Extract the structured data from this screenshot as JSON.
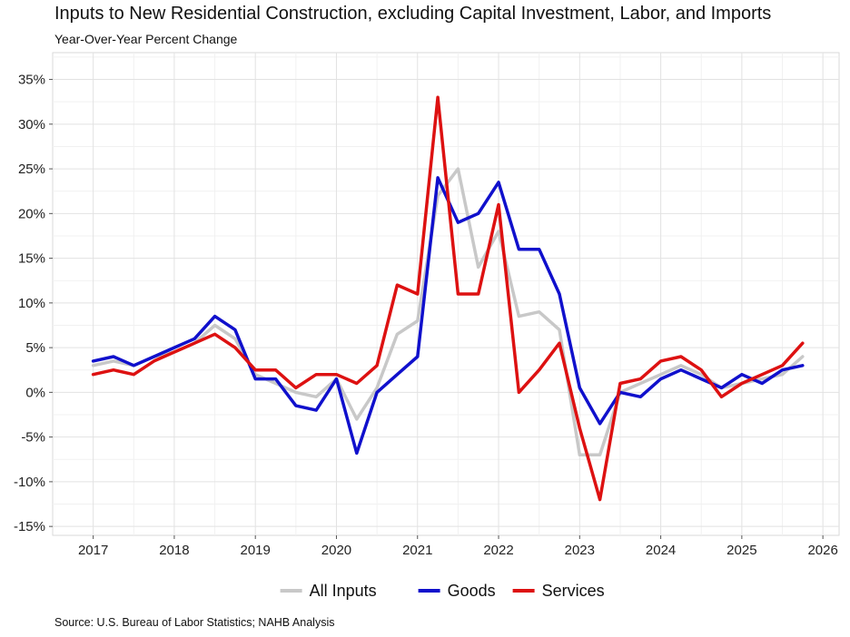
{
  "chart_data": {
    "type": "line",
    "title": "Inputs to New Residential Construction, excluding Capital Investment, Labor, and Imports",
    "subtitle": "Year-Over-Year Percent Change",
    "source": "Source: U.S. Bureau of Labor Statistics; NAHB Analysis",
    "xlabel": "",
    "ylabel": "",
    "x_ticks": [
      "2017",
      "2018",
      "2019",
      "2020",
      "2021",
      "2022",
      "2023",
      "2024",
      "2025",
      "2026"
    ],
    "y_ticks": [
      "35%",
      "30%",
      "25%",
      "20%",
      "15%",
      "10%",
      "5%",
      "0%",
      "-5%",
      "-10%",
      "-15%"
    ],
    "xlim": [
      2016.5,
      2026.2
    ],
    "ylim": [
      -16.0,
      38.0
    ],
    "grid": true,
    "legend_position": "bottom",
    "x": [
      "2017-01",
      "2017-04",
      "2017-07",
      "2017-10",
      "2018-01",
      "2018-04",
      "2018-07",
      "2018-10",
      "2019-01",
      "2019-04",
      "2019-07",
      "2019-10",
      "2020-01",
      "2020-04",
      "2020-07",
      "2020-10",
      "2021-01",
      "2021-04",
      "2021-07",
      "2021-10",
      "2022-01",
      "2022-04",
      "2022-07",
      "2022-10",
      "2023-01",
      "2023-04",
      "2023-07",
      "2023-10",
      "2024-01",
      "2024-04",
      "2024-07",
      "2024-10",
      "2025-01",
      "2025-04",
      "2025-07",
      "2025-10"
    ],
    "series": [
      {
        "name": "All Inputs",
        "color": "#c8c8c8",
        "values": [
          3.0,
          3.5,
          3.0,
          4.0,
          4.5,
          5.5,
          7.5,
          6.0,
          2.0,
          1.0,
          0.0,
          -0.5,
          1.5,
          -3.0,
          0.5,
          6.5,
          8.0,
          22.0,
          25.0,
          14.0,
          18.0,
          8.5,
          9.0,
          7.0,
          -7.0,
          -7.0,
          0.0,
          1.0,
          2.0,
          3.0,
          2.0,
          0.5,
          1.0,
          1.5,
          2.0,
          4.0
        ]
      },
      {
        "name": "Goods",
        "color": "#1010cc",
        "values": [
          3.5,
          4.0,
          3.0,
          4.0,
          5.0,
          6.0,
          8.5,
          7.0,
          1.5,
          1.5,
          -1.5,
          -2.0,
          1.5,
          -6.8,
          0.0,
          2.0,
          4.0,
          24.0,
          19.0,
          20.0,
          23.5,
          16.0,
          16.0,
          11.0,
          0.5,
          -3.5,
          0.0,
          -0.5,
          1.5,
          2.5,
          1.5,
          0.5,
          2.0,
          1.0,
          2.5,
          3.0
        ]
      },
      {
        "name": "Services",
        "color": "#dd1111",
        "values": [
          2.0,
          2.5,
          2.0,
          3.5,
          4.5,
          5.5,
          6.5,
          5.0,
          2.5,
          2.5,
          0.5,
          2.0,
          2.0,
          1.0,
          3.0,
          12.0,
          11.0,
          33.0,
          11.0,
          11.0,
          21.0,
          0.0,
          2.5,
          5.5,
          -4.0,
          -12.0,
          1.0,
          1.5,
          3.5,
          4.0,
          2.5,
          -0.5,
          1.0,
          2.0,
          3.0,
          5.5
        ]
      }
    ]
  }
}
